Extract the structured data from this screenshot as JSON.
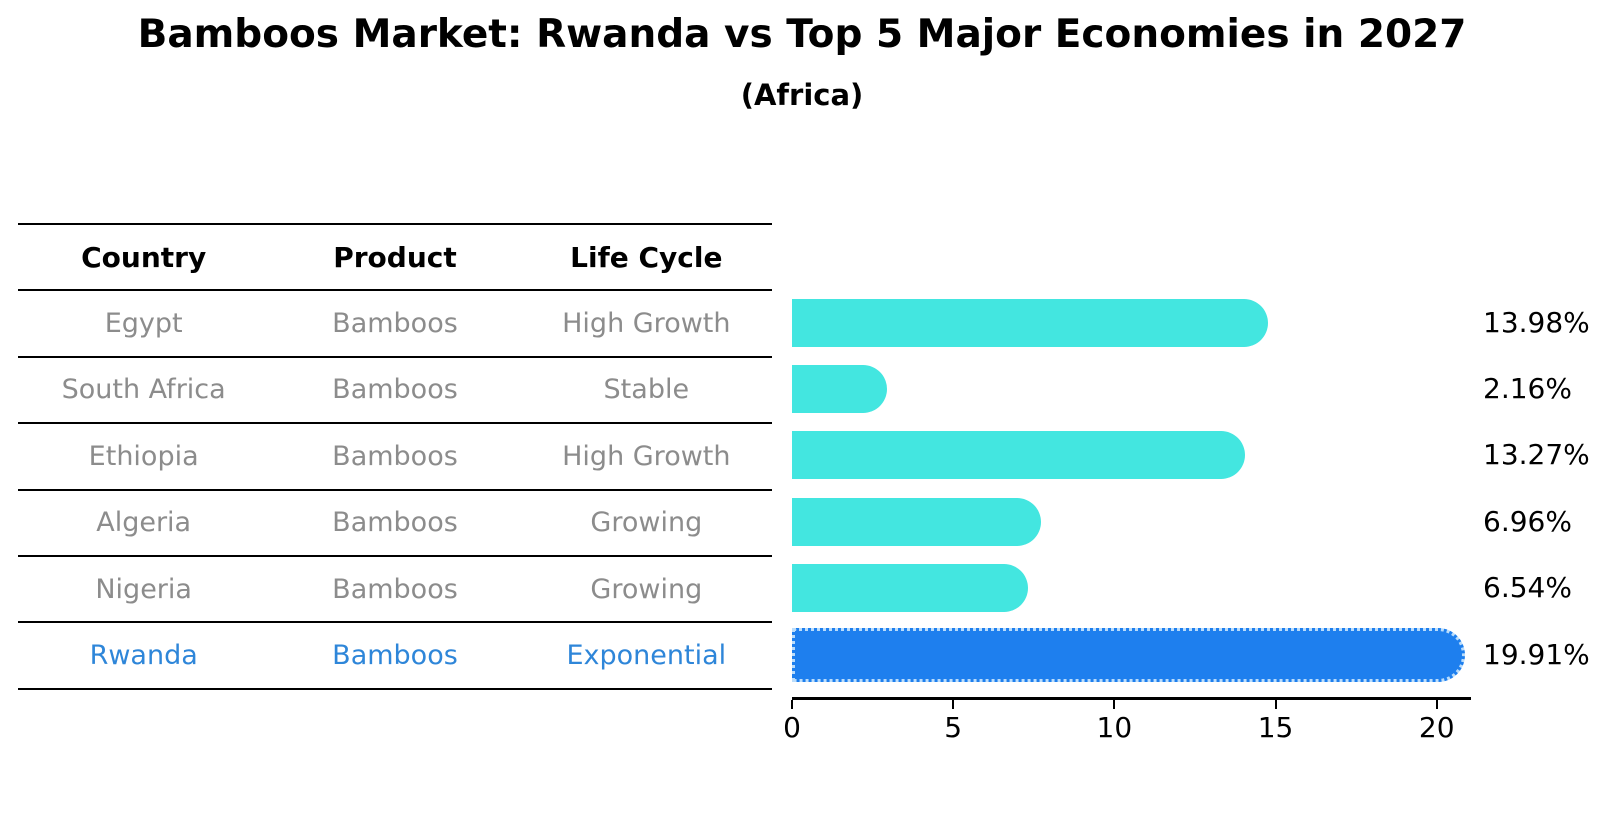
{
  "title": "Bamboos Market: Rwanda vs Top 5 Major Economies in 2027",
  "subtitle": "(Africa)",
  "table": {
    "headers": [
      "Country",
      "Product",
      "Life Cycle"
    ],
    "rows": [
      {
        "country": "Egypt",
        "product": "Bamboos",
        "life_cycle": "High Growth",
        "highlight": false
      },
      {
        "country": "South Africa",
        "product": "Bamboos",
        "life_cycle": "Stable",
        "highlight": false
      },
      {
        "country": "Ethiopia",
        "product": "Bamboos",
        "life_cycle": "High Growth",
        "highlight": false
      },
      {
        "country": "Algeria",
        "product": "Bamboos",
        "life_cycle": "Growing",
        "highlight": false
      },
      {
        "country": "Nigeria",
        "product": "Bamboos",
        "life_cycle": "Growing",
        "highlight": true
      }
    ],
    "highlight_row": {
      "country": "Rwanda",
      "product": "Bamboos",
      "life_cycle": "Exponential"
    }
  },
  "chart_data": {
    "type": "bar",
    "orientation": "horizontal",
    "title": "Bamboos Market: Rwanda vs Top 5 Major Economies in 2027",
    "subtitle": "(Africa)",
    "categories": [
      "Egypt",
      "South Africa",
      "Ethiopia",
      "Algeria",
      "Nigeria",
      "Rwanda"
    ],
    "values": [
      13.98,
      2.16,
      13.27,
      6.96,
      6.54,
      19.91
    ],
    "labels": [
      "13.98%",
      "2.16%",
      "13.27%",
      "6.96%",
      "6.54%",
      "19.91%"
    ],
    "xlabel": "",
    "ylabel": "",
    "xlim": [
      0,
      21
    ],
    "xticks": [
      0,
      5,
      10,
      15,
      20
    ],
    "grid": false,
    "legend": "none",
    "bar_color": "#43e6e0",
    "highlight_color": "#1e7fee",
    "highlight_index": 5,
    "highlight_edge_style": "dotted",
    "highlight_text_color": "#2e86d9",
    "text_gray": "#8c8c8c"
  }
}
